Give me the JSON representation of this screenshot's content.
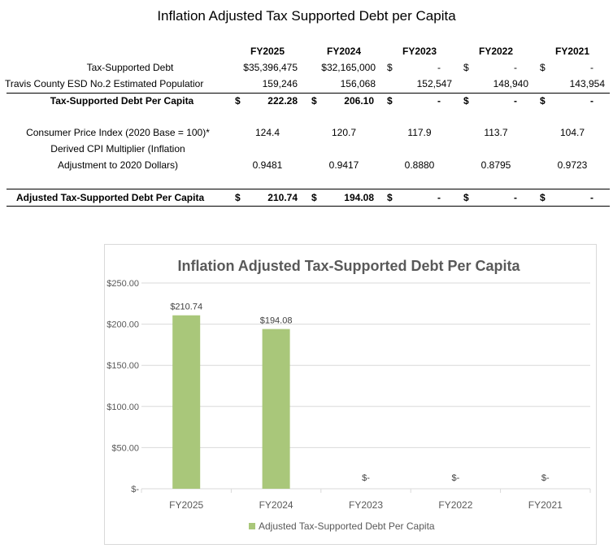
{
  "page_title": "Inflation Adjusted Tax Supported Debt per Capita",
  "table": {
    "columns": [
      "FY2025",
      "FY2024",
      "FY2023",
      "FY2022",
      "FY2021"
    ],
    "rows": {
      "tax_supported_debt": {
        "label": "Tax-Supported Debt",
        "values": [
          "$35,396,475",
          "$32,165,000",
          "-",
          "-",
          "-"
        ],
        "dollar_signs": [
          "",
          "",
          "$",
          "$",
          "$"
        ]
      },
      "population": {
        "label": "Travis County ESD No.2 Estimated Populatior",
        "values": [
          "159,246",
          "156,068",
          "152,547",
          "148,940",
          "143,954"
        ]
      },
      "per_capita": {
        "label": "Tax-Supported Debt Per Capita",
        "values": [
          "222.28",
          "206.10",
          "-",
          "-",
          "-"
        ],
        "dollar_sign": "$"
      },
      "cpi": {
        "label": "Consumer Price Index (2020 Base = 100)*",
        "values": [
          "124.4",
          "120.7",
          "117.9",
          "113.7",
          "104.7"
        ]
      },
      "multiplier": {
        "label_line1": "Derived CPI Multiplier (Inflation",
        "label_line2": "Adjustment to 2020 Dollars)",
        "values": [
          "0.9481",
          "0.9417",
          "0.8880",
          "0.8795",
          "0.9723"
        ]
      },
      "adjusted": {
        "label": "Adjusted Tax-Supported Debt Per Capita",
        "values": [
          "210.74",
          "194.08",
          "-",
          "-",
          "-"
        ],
        "dollar_sign": "$"
      }
    }
  },
  "chart_data": {
    "type": "bar",
    "title": "Inflation Adjusted Tax-Supported Debt Per Capita",
    "categories": [
      "FY2025",
      "FY2024",
      "FY2023",
      "FY2022",
      "FY2021"
    ],
    "series": [
      {
        "name": "Adjusted Tax-Supported Debt Per Capita",
        "values": [
          210.74,
          194.08,
          0,
          0,
          0
        ],
        "data_labels": [
          "$210.74",
          "$194.08",
          "$-",
          "$-",
          "$-"
        ],
        "color": "#a9c77a"
      }
    ],
    "ylim": [
      0,
      250
    ],
    "y_ticks": [
      0,
      50,
      100,
      150,
      200,
      250
    ],
    "y_tick_labels": [
      "$-",
      "$50.00",
      "$100.00",
      "$150.00",
      "$200.00",
      "$250.00"
    ],
    "grid": true,
    "legend_position": "bottom",
    "title_color": "#595959",
    "axis_text_color": "#595959",
    "grid_color": "#d9d9d9"
  }
}
